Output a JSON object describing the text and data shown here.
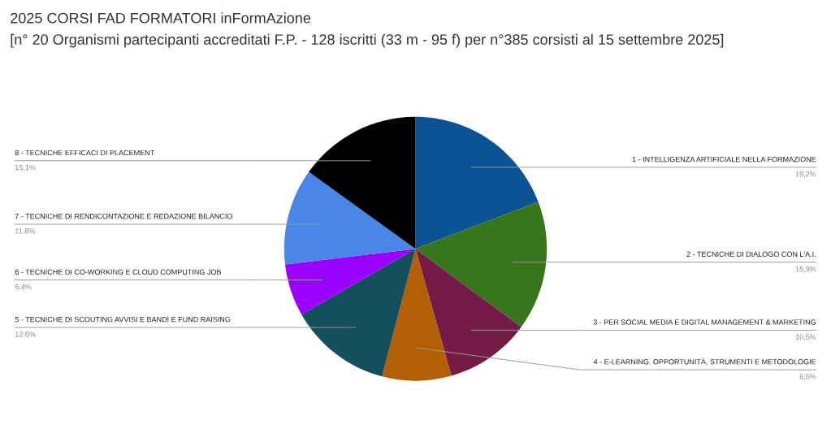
{
  "chart_data": {
    "type": "pie",
    "title": "2025 CORSI FAD FORMATORI inFormAzione",
    "subtitle": "[n° 20 Organismi partecipanti accreditati F.P. - 128 iscritti (33 m - 95 f) per n°385 corsisti al 15 settembre 2025]",
    "categories": [
      "1 - INTELLIGENZA ARTIFICIALE NELLA FORMAZIONE",
      "2 - TECNICHE DI DIALOGO CON L'A.I.",
      "3 - PER SOCIAL MEDIA E DIGITAL MANAGEMENT & MARKETING",
      "4 - E-LEARNING. OPPORTUNITÀ, STRUMENTI E METODOLOGIE",
      "5 - TECNICHE DI SCOUTING AVVISI E BANDI E FUND RAISING",
      "6 - TECNICHE DI CO-WORKING E CLOUD COMPUTING JOB",
      "7 - TECNICHE DI RENDICONTAZIONE E REDAZIONE BILANCIO",
      "8 - TECNICHE EFFICACI DI PLACEMENT"
    ],
    "values": [
      19.2,
      15.9,
      10.5,
      8.5,
      12.6,
      6.4,
      11.8,
      15.1
    ],
    "value_labels": [
      "19,2%",
      "15,9%",
      "10,5%",
      "8,5%",
      "12,6%",
      "6,4%",
      "11,8%",
      "15,1%"
    ],
    "colors": [
      "#0b5394",
      "#38761d",
      "#741b47",
      "#b45f06",
      "#134f5c",
      "#9900ff",
      "#4a86e8",
      "#000000"
    ]
  }
}
